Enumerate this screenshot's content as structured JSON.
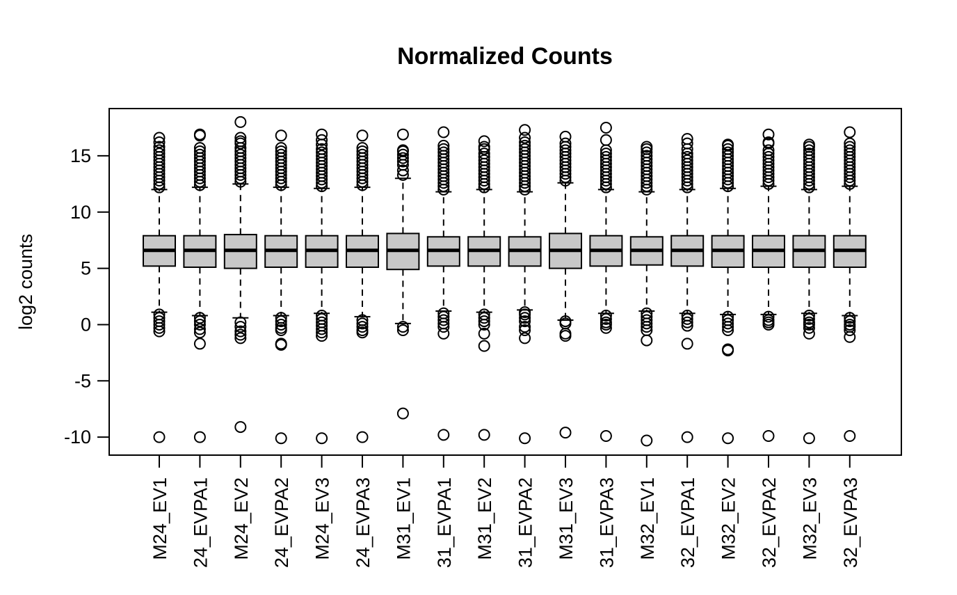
{
  "chart_data": {
    "type": "boxplot",
    "title": "Normalized Counts",
    "xlabel": "",
    "ylabel": "log2 counts",
    "ylim": [
      -11.6,
      19.2
    ],
    "yticks": [
      -10,
      -5,
      0,
      5,
      10,
      15
    ],
    "ytick_labels": [
      "-10",
      "-5",
      "0",
      "5",
      "10",
      "15"
    ],
    "grid": false,
    "legend": "none",
    "box_fill": "#c8c8c8",
    "line_color": "#000000",
    "categories": [
      "M24_EV1",
      "24_EVPA1",
      "M24_EV2",
      "24_EVPA2",
      "M24_EV3",
      "24_EVPA3",
      "M31_EV1",
      "31_EVPA1",
      "M31_EV2",
      "31_EVPA2",
      "M31_EV3",
      "31_EVPA3",
      "M32_EV1",
      "32_EVPA1",
      "M32_EV2",
      "32_EVPA2",
      "M32_EV3",
      "32_EVPA3"
    ],
    "boxes": [
      {
        "q1": 5.2,
        "median": 6.6,
        "q3": 7.9,
        "whisker_low": 1.1,
        "whisker_high": 12.0,
        "outliers": [
          0.9,
          0.6,
          0.3,
          0.0,
          -0.3,
          -0.6,
          12.2,
          12.5,
          12.8,
          13.1,
          13.4,
          13.7,
          14.0,
          14.3,
          14.6,
          14.9,
          15.2,
          15.5,
          15.8,
          16.2,
          16.6,
          -10.0
        ]
      },
      {
        "q1": 5.1,
        "median": 6.6,
        "q3": 7.9,
        "whisker_low": 0.8,
        "whisker_high": 12.2,
        "outliers": [
          0.6,
          0.3,
          0.0,
          -0.4,
          -0.7,
          -1.7,
          12.4,
          12.7,
          13.0,
          13.3,
          13.6,
          13.9,
          14.2,
          14.5,
          14.8,
          15.1,
          15.4,
          15.7,
          16.8,
          16.9,
          -10.0
        ]
      },
      {
        "q1": 5.0,
        "median": 6.6,
        "q3": 8.0,
        "whisker_low": 0.6,
        "whisker_high": 12.5,
        "outliers": [
          0.2,
          -0.2,
          -0.6,
          -0.9,
          -1.2,
          12.7,
          13.0,
          13.3,
          13.6,
          13.9,
          14.2,
          14.5,
          14.8,
          15.1,
          15.4,
          15.7,
          16.1,
          16.3,
          16.6,
          18.0,
          -9.1
        ]
      },
      {
        "q1": 5.1,
        "median": 6.6,
        "q3": 7.9,
        "whisker_low": 0.8,
        "whisker_high": 12.2,
        "outliers": [
          0.6,
          0.3,
          0.0,
          -0.3,
          -0.5,
          -1.7,
          -1.8,
          12.4,
          12.7,
          13.0,
          13.3,
          13.6,
          13.9,
          14.2,
          14.5,
          14.8,
          15.1,
          15.4,
          15.7,
          16.8,
          -10.1
        ]
      },
      {
        "q1": 5.1,
        "median": 6.6,
        "q3": 7.9,
        "whisker_low": 1.0,
        "whisker_high": 12.1,
        "outliers": [
          0.8,
          0.5,
          0.2,
          -0.1,
          -0.4,
          -0.7,
          -1.0,
          12.3,
          12.6,
          12.9,
          13.2,
          13.5,
          13.8,
          14.1,
          14.4,
          14.7,
          15.0,
          15.3,
          15.6,
          16.0,
          16.4,
          16.9,
          -10.1
        ]
      },
      {
        "q1": 5.1,
        "median": 6.6,
        "q3": 7.9,
        "whisker_low": 0.7,
        "whisker_high": 12.2,
        "outliers": [
          0.4,
          0.1,
          -0.2,
          -0.5,
          -0.7,
          12.4,
          12.7,
          13.0,
          13.3,
          13.6,
          13.9,
          14.2,
          14.5,
          14.8,
          15.1,
          15.4,
          15.7,
          16.8,
          -10.0
        ]
      },
      {
        "q1": 4.9,
        "median": 6.6,
        "q3": 8.1,
        "whisker_low": 0.1,
        "whisker_high": 13.0,
        "outliers": [
          -0.2,
          -0.5,
          13.3,
          13.7,
          14.2,
          14.5,
          14.8,
          15.1,
          15.4,
          15.5,
          16.9,
          -7.9
        ]
      },
      {
        "q1": 5.2,
        "median": 6.6,
        "q3": 7.8,
        "whisker_low": 1.2,
        "whisker_high": 11.8,
        "outliers": [
          1.0,
          0.7,
          0.4,
          0.1,
          -0.2,
          -0.8,
          12.0,
          12.3,
          12.6,
          12.9,
          13.2,
          13.5,
          13.8,
          14.1,
          14.4,
          14.7,
          15.0,
          15.3,
          15.6,
          15.9,
          17.1,
          -9.8
        ]
      },
      {
        "q1": 5.2,
        "median": 6.6,
        "q3": 7.8,
        "whisker_low": 1.1,
        "whisker_high": 12.0,
        "outliers": [
          0.9,
          0.6,
          0.3,
          0.0,
          -0.8,
          -1.9,
          12.2,
          12.5,
          12.8,
          13.1,
          13.4,
          13.7,
          14.0,
          14.3,
          14.6,
          14.9,
          15.2,
          15.6,
          15.8,
          16.3,
          -9.8
        ]
      },
      {
        "q1": 5.2,
        "median": 6.6,
        "q3": 7.8,
        "whisker_low": 1.3,
        "whisker_high": 11.8,
        "outliers": [
          1.1,
          0.9,
          0.6,
          0.3,
          -0.2,
          -0.5,
          -1.2,
          12.0,
          12.3,
          12.6,
          12.9,
          13.2,
          13.5,
          13.8,
          14.1,
          14.4,
          14.7,
          15.0,
          15.3,
          15.6,
          15.9,
          16.2,
          16.6,
          17.3,
          -10.1
        ]
      },
      {
        "q1": 5.0,
        "median": 6.6,
        "q3": 8.1,
        "whisker_low": 0.4,
        "whisker_high": 12.6,
        "outliers": [
          0.3,
          0.1,
          -0.8,
          -1.0,
          12.8,
          13.1,
          13.4,
          13.7,
          14.0,
          14.3,
          14.6,
          14.9,
          15.2,
          15.5,
          15.8,
          16.1,
          16.7,
          -9.6
        ]
      },
      {
        "q1": 5.2,
        "median": 6.6,
        "q3": 7.9,
        "whisker_low": 1.0,
        "whisker_high": 12.0,
        "outliers": [
          0.8,
          0.5,
          0.2,
          0.0,
          -0.3,
          12.2,
          12.5,
          12.8,
          13.1,
          13.4,
          13.7,
          14.0,
          14.3,
          14.6,
          14.9,
          15.2,
          15.5,
          16.4,
          17.5,
          -9.9
        ]
      },
      {
        "q1": 5.3,
        "median": 6.6,
        "q3": 7.8,
        "whisker_low": 1.2,
        "whisker_high": 11.8,
        "outliers": [
          1.0,
          0.7,
          0.4,
          0.1,
          -0.2,
          -0.5,
          -1.4,
          12.0,
          12.3,
          12.6,
          12.9,
          13.2,
          13.5,
          13.8,
          14.1,
          14.4,
          14.7,
          15.0,
          15.3,
          15.6,
          15.8,
          -10.3
        ]
      },
      {
        "q1": 5.2,
        "median": 6.6,
        "q3": 7.9,
        "whisker_low": 1.0,
        "whisker_high": 12.0,
        "outliers": [
          0.8,
          0.5,
          0.2,
          -0.1,
          -1.7,
          12.2,
          12.5,
          12.8,
          13.1,
          13.4,
          13.7,
          14.0,
          14.3,
          14.6,
          14.9,
          15.2,
          15.6,
          16.1,
          16.5,
          -10.0
        ]
      },
      {
        "q1": 5.1,
        "median": 6.6,
        "q3": 7.9,
        "whisker_low": 0.9,
        "whisker_high": 12.1,
        "outliers": [
          0.7,
          0.4,
          0.1,
          -0.2,
          -0.5,
          -2.2,
          -2.3,
          12.3,
          12.6,
          12.9,
          13.2,
          13.5,
          13.8,
          14.1,
          14.4,
          14.7,
          15.0,
          15.3,
          15.6,
          15.9,
          16.0,
          -10.1
        ]
      },
      {
        "q1": 5.1,
        "median": 6.6,
        "q3": 7.9,
        "whisker_low": 0.9,
        "whisker_high": 12.3,
        "outliers": [
          0.7,
          0.4,
          0.2,
          0.0,
          12.5,
          12.8,
          13.1,
          13.4,
          13.7,
          14.0,
          14.3,
          14.6,
          14.9,
          15.2,
          15.5,
          16.1,
          16.2,
          16.9,
          -9.9
        ]
      },
      {
        "q1": 5.1,
        "median": 6.6,
        "q3": 7.9,
        "whisker_low": 1.0,
        "whisker_high": 12.0,
        "outliers": [
          0.8,
          0.5,
          0.2,
          0.0,
          -0.3,
          -0.8,
          12.2,
          12.5,
          12.8,
          13.1,
          13.4,
          13.7,
          14.0,
          14.3,
          14.6,
          14.9,
          15.2,
          15.5,
          15.8,
          16.0,
          -10.1
        ]
      },
      {
        "q1": 5.1,
        "median": 6.6,
        "q3": 7.9,
        "whisker_low": 0.8,
        "whisker_high": 12.3,
        "outliers": [
          0.6,
          0.3,
          0.0,
          -0.2,
          -0.5,
          -1.1,
          12.5,
          12.8,
          13.1,
          13.4,
          13.7,
          14.0,
          14.3,
          14.6,
          14.9,
          15.2,
          15.5,
          15.8,
          16.1,
          17.1,
          -9.9
        ]
      }
    ]
  }
}
